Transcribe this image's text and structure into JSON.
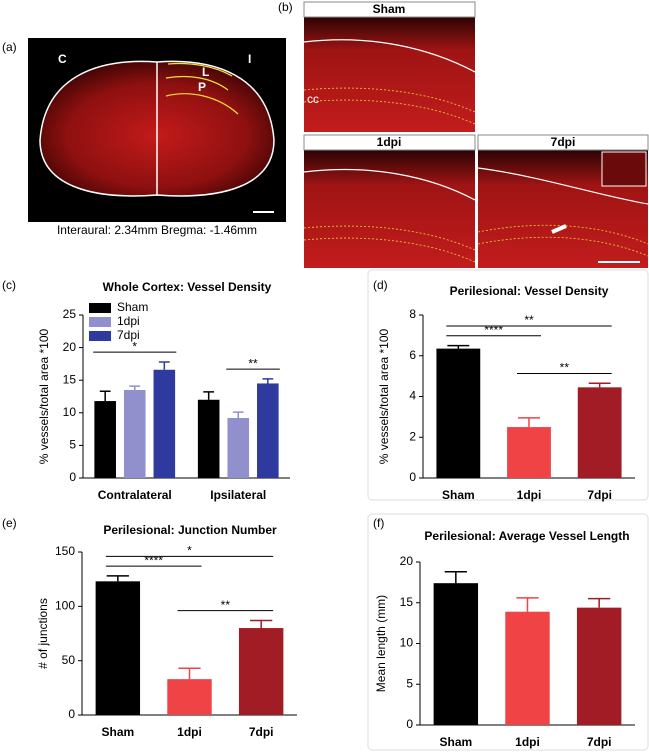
{
  "panels": {
    "a": {
      "label": "(a)",
      "left": "C",
      "right": "I",
      "regions": [
        "L",
        "P"
      ],
      "caption": "Interaural: 2.34mm Bregma: -1.46mm"
    },
    "b": {
      "label": "(b)",
      "images": [
        "Sham",
        "1dpi",
        "7dpi"
      ],
      "region": "cc"
    }
  },
  "chart_data": [
    {
      "type": "grouped_bar",
      "label": "(c)",
      "title": "Whole Cortex: Vessel Density",
      "ylabel": "% vessels/total area *100",
      "categories": [
        "Contralateral",
        "Ipsilateral"
      ],
      "series": [
        {
          "name": "Sham",
          "color": "#000000",
          "values": [
            11.8,
            12
          ],
          "errors": [
            1.5,
            1.2
          ]
        },
        {
          "name": "1dpi",
          "color": "#9190cc",
          "values": [
            13.5,
            9.2
          ],
          "errors": [
            0.6,
            0.9
          ]
        },
        {
          "name": "7dpi",
          "color": "#2e3a9e",
          "values": [
            16.6,
            14.5
          ],
          "errors": [
            1.2,
            0.7
          ]
        }
      ],
      "ylim": [
        0,
        25
      ],
      "yticks": [
        0,
        5,
        10,
        15,
        20,
        25
      ],
      "legend": "top-left",
      "annotations": [
        {
          "label": "*",
          "category": "Contralateral",
          "between": [
            "Sham",
            "7dpi"
          ]
        },
        {
          "label": "**",
          "category": "Ipsilateral",
          "between": [
            "1dpi",
            "7dpi"
          ]
        }
      ]
    },
    {
      "type": "bar",
      "label": "(d)",
      "title": "Perilesional: Vessel Density",
      "ylabel": "% vessels/total area *100",
      "categories": [
        "Sham",
        "1dpi",
        "7dpi"
      ],
      "values": [
        6.35,
        2.5,
        4.45
      ],
      "errors": [
        0.15,
        0.45,
        0.2
      ],
      "colors": [
        "#000000",
        "#ef4346",
        "#a11c24"
      ],
      "ylim": [
        0,
        8
      ],
      "yticks": [
        0,
        2,
        4,
        6,
        8
      ],
      "annotations": [
        {
          "label": "**",
          "between": [
            "1dpi",
            "7dpi"
          ]
        },
        {
          "label": "****",
          "between": [
            "Sham",
            "1dpi"
          ]
        },
        {
          "label": "**",
          "between": [
            "Sham",
            "7dpi"
          ]
        }
      ]
    },
    {
      "type": "bar",
      "label": "(e)",
      "title": "Perilesional: Junction Number",
      "ylabel": "# of junctions",
      "categories": [
        "Sham",
        "1dpi",
        "7dpi"
      ],
      "values": [
        123,
        33,
        80
      ],
      "errors": [
        5,
        10,
        7
      ],
      "colors": [
        "#000000",
        "#ef4346",
        "#a11c24"
      ],
      "ylim": [
        0,
        150
      ],
      "yticks": [
        0,
        50,
        100,
        150
      ],
      "annotations": [
        {
          "label": "**",
          "between": [
            "1dpi",
            "7dpi"
          ]
        },
        {
          "label": "****",
          "between": [
            "Sham",
            "1dpi"
          ]
        },
        {
          "label": "*",
          "between": [
            "Sham",
            "7dpi"
          ]
        }
      ]
    },
    {
      "type": "bar",
      "label": "(f)",
      "title": "Perilesional: Average Vessel Length",
      "ylabel": "Mean length (mm)",
      "categories": [
        "Sham",
        "1dpi",
        "7dpi"
      ],
      "values": [
        17.4,
        13.9,
        14.4
      ],
      "errors": [
        1.4,
        1.7,
        1.1
      ],
      "colors": [
        "#000000",
        "#ef4346",
        "#a11c24"
      ],
      "ylim": [
        0,
        20
      ],
      "yticks": [
        0,
        5,
        10,
        15,
        20
      ],
      "annotations": []
    }
  ]
}
